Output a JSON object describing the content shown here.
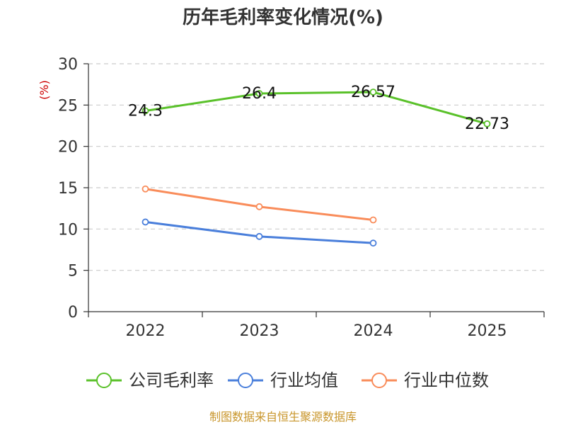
{
  "chart_data": {
    "type": "line",
    "title": "历年毛利率变化情况(%)",
    "ylabel": "(%)",
    "categories": [
      "2022",
      "2023",
      "2024",
      "2025"
    ],
    "ylim": [
      0,
      30
    ],
    "yticks": [
      0,
      5,
      10,
      15,
      20,
      25,
      30
    ],
    "grid": true,
    "legend_position": "bottom",
    "series": [
      {
        "name": "公司毛利率",
        "color": "#5ac12a",
        "values": [
          24.3,
          26.4,
          26.57,
          22.73
        ],
        "labels": [
          "24.3",
          "26.4",
          "26.57",
          "22.73"
        ]
      },
      {
        "name": "行业均值",
        "color": "#4a7fdb",
        "values": [
          10.85,
          9.1,
          8.3,
          null
        ]
      },
      {
        "name": "行业中位数",
        "color": "#f98c5a",
        "values": [
          14.85,
          12.7,
          11.1,
          null
        ]
      }
    ]
  },
  "colors": {
    "unit_label": "#cc0000",
    "source": "#c8952a",
    "axis": "#333333",
    "grid": "#cccccc"
  },
  "source": "制图数据来自恒生聚源数据库"
}
